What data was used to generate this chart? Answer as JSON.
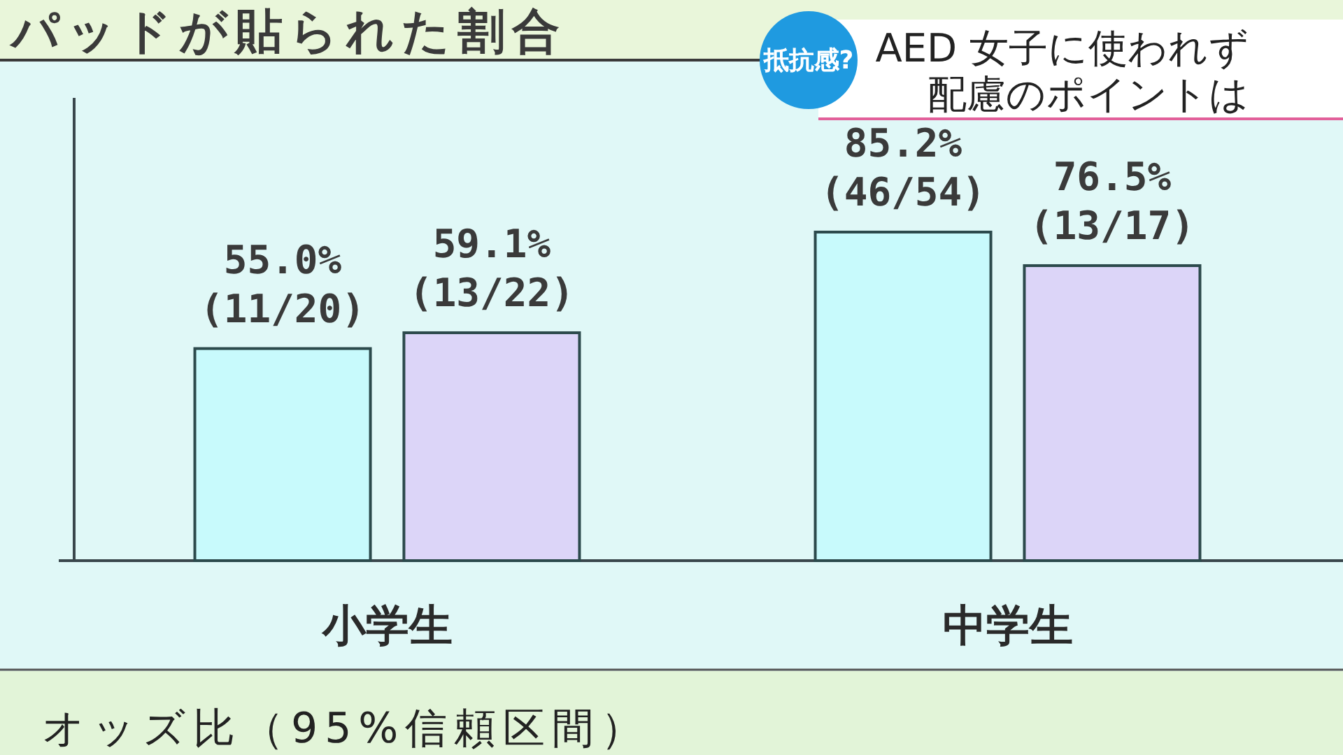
{
  "chart_data": {
    "type": "bar",
    "title": "パッドが貼られた割合",
    "categories": [
      "小学生",
      "中学生"
    ],
    "series": [
      {
        "color": "#c8fafc",
        "values": [
          55.0,
          85.2
        ],
        "value_labels": [
          "55.0%\n(11/20)",
          "85.2%\n(46/54)"
        ]
      },
      {
        "color": "#dcd5f8",
        "values": [
          59.1,
          76.5
        ],
        "value_labels": [
          "59.1%\n(13/22)",
          "76.5%\n(13/17)"
        ]
      }
    ],
    "ylim": [
      0,
      120
    ],
    "tick_labels": "x",
    "annotations": [
      "抵抗感?",
      "AED 女子に使われず配慮のポイントは",
      "オッズ比（95%信頼区間）"
    ]
  }
}
